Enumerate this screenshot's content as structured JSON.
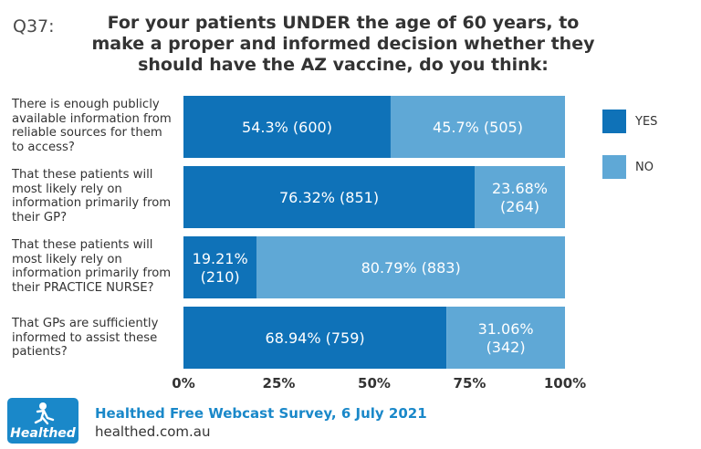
{
  "question_number": "Q37:",
  "title": "For your patients UNDER the age of 60 years, to make a proper and informed decision whether they should have the AZ vaccine, do you think:",
  "colors": {
    "yes": "#0f72b8",
    "no": "#5fa8d6",
    "logo_bg": "#1a88c9"
  },
  "legend": [
    {
      "key": "yes",
      "label": "YES"
    },
    {
      "key": "no",
      "label": "NO"
    }
  ],
  "chart_data": {
    "type": "bar",
    "orientation": "horizontal-stacked-100",
    "categories": [
      "There is enough publicly available information from reliable sources for them to access?",
      "That these patients will most likely rely on information primarily from their GP?",
      "That these patients will most likely rely on information primarily from their PRACTICE NURSE?",
      "That GPs are sufficiently informed to assist these patients?"
    ],
    "series": [
      {
        "name": "YES",
        "values": [
          54.3,
          76.32,
          19.21,
          68.94
        ],
        "labels": [
          [
            "54.3% (600)"
          ],
          [
            "76.32% (851)"
          ],
          [
            "19.21%",
            "(210)"
          ],
          [
            "68.94% (759)"
          ]
        ]
      },
      {
        "name": "NO",
        "values": [
          45.7,
          23.68,
          80.79,
          31.06
        ],
        "labels": [
          [
            "45.7% (505)"
          ],
          [
            "23.68%",
            "(264)"
          ],
          [
            "80.79% (883)"
          ],
          [
            "31.06%",
            "(342)"
          ]
        ]
      }
    ],
    "x_ticks": [
      "0%",
      "25%",
      "50%",
      "75%",
      "100%"
    ],
    "xlim": [
      0,
      100
    ],
    "legend_position": "right",
    "grid": false
  },
  "footer": {
    "logo_text": "Healthed",
    "source": "Healthed Free Webcast Survey, 6 July 2021",
    "url": "healthed.com.au"
  }
}
